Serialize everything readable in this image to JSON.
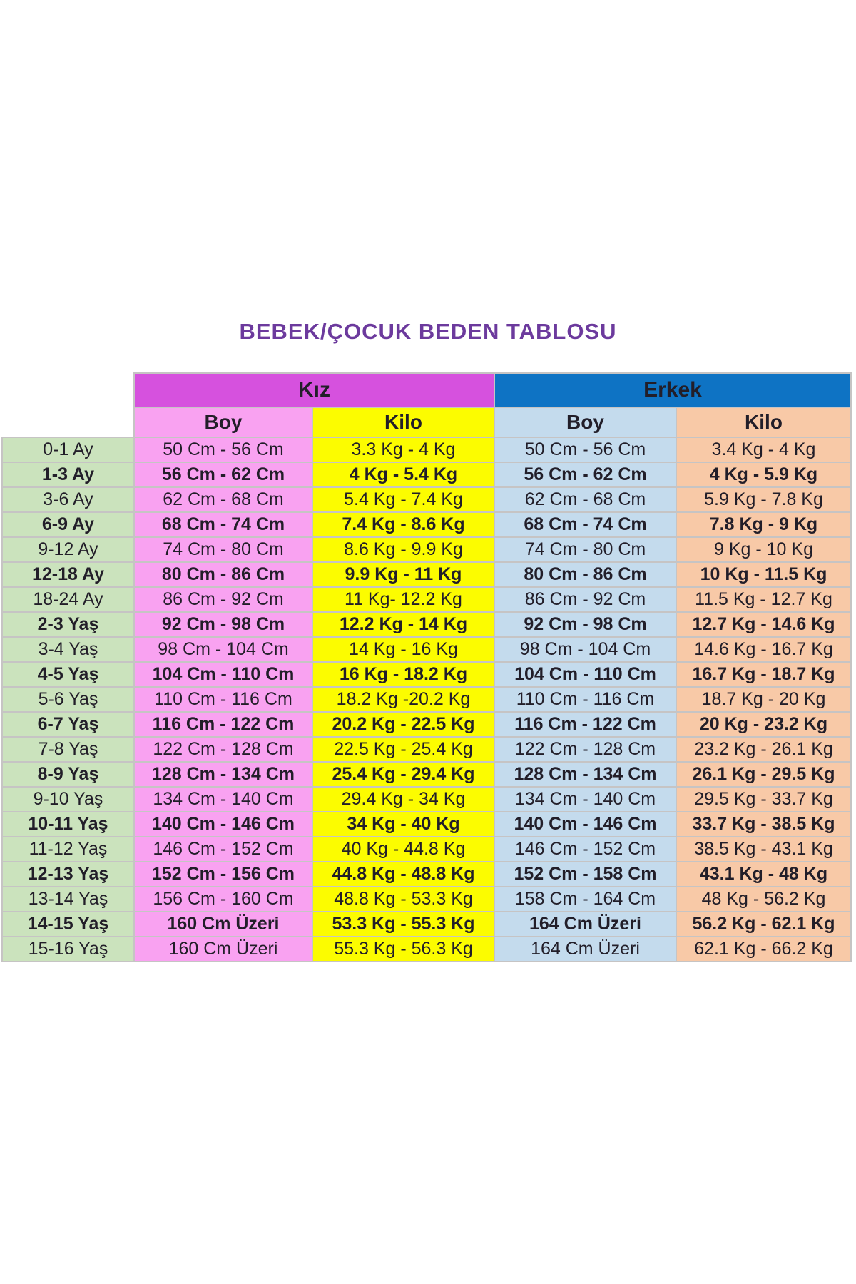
{
  "title": {
    "text": "BEBEK/ÇOCUK BEDEN TABLOSU",
    "color": "#6C3A9D"
  },
  "table": {
    "groups": [
      {
        "label": "Kız"
      },
      {
        "label": "Erkek"
      }
    ],
    "subheader": {
      "boy": "Boy",
      "kilo": "Kilo"
    },
    "colors": {
      "title_color": "#6C3A9D",
      "kiz_header_bg": "#D651DE",
      "erkek_header_bg": "#0E73C4",
      "kiz_boy_bg": "#F9A2F1",
      "kiz_kilo_bg": "#FCFC00",
      "erkek_boy_bg": "#C4DBED",
      "erkek_kilo_bg": "#F8C9A7",
      "age_bg": "#CBE3BD",
      "grid": "#C6C4C4",
      "text": "#221E29"
    },
    "rows": [
      {
        "age": "0-1 Ay",
        "kiz_boy": "50 Cm - 56 Cm",
        "kiz_kilo": "3.3 Kg - 4 Kg",
        "erkek_boy": "50 Cm - 56 Cm",
        "erkek_kilo": "3.4 Kg - 4 Kg",
        "bold": false
      },
      {
        "age": "1-3 Ay",
        "kiz_boy": "56 Cm - 62 Cm",
        "kiz_kilo": "4 Kg - 5.4 Kg",
        "erkek_boy": "56 Cm - 62 Cm",
        "erkek_kilo": "4 Kg - 5.9 Kg",
        "bold": true
      },
      {
        "age": "3-6 Ay",
        "kiz_boy": "62 Cm - 68 Cm",
        "kiz_kilo": "5.4 Kg - 7.4 Kg",
        "erkek_boy": "62 Cm - 68 Cm",
        "erkek_kilo": "5.9 Kg - 7.8 Kg",
        "bold": false
      },
      {
        "age": "6-9 Ay",
        "kiz_boy": "68 Cm - 74 Cm",
        "kiz_kilo": "7.4 Kg - 8.6 Kg",
        "erkek_boy": "68 Cm - 74 Cm",
        "erkek_kilo": "7.8 Kg - 9 Kg",
        "bold": true
      },
      {
        "age": "9-12 Ay",
        "kiz_boy": "74 Cm - 80 Cm",
        "kiz_kilo": "8.6 Kg - 9.9 Kg",
        "erkek_boy": "74 Cm - 80 Cm",
        "erkek_kilo": "9 Kg - 10 Kg",
        "bold": false
      },
      {
        "age": "12-18 Ay",
        "kiz_boy": "80 Cm - 86 Cm",
        "kiz_kilo": "9.9 Kg - 11 Kg",
        "erkek_boy": "80 Cm - 86 Cm",
        "erkek_kilo": "10 Kg - 11.5 Kg",
        "bold": true
      },
      {
        "age": "18-24 Ay",
        "kiz_boy": "86 Cm - 92 Cm",
        "kiz_kilo": "11 Kg- 12.2 Kg",
        "erkek_boy": "86 Cm - 92 Cm",
        "erkek_kilo": "11.5 Kg - 12.7 Kg",
        "bold": false
      },
      {
        "age": "2-3 Yaş",
        "kiz_boy": "92 Cm - 98 Cm",
        "kiz_kilo": "12.2 Kg - 14 Kg",
        "erkek_boy": "92 Cm - 98 Cm",
        "erkek_kilo": "12.7 Kg - 14.6 Kg",
        "bold": true
      },
      {
        "age": "3-4 Yaş",
        "kiz_boy": "98 Cm - 104 Cm",
        "kiz_kilo": "14 Kg - 16 Kg",
        "erkek_boy": "98 Cm - 104 Cm",
        "erkek_kilo": "14.6 Kg - 16.7 Kg",
        "bold": false
      },
      {
        "age": "4-5 Yaş",
        "kiz_boy": "104 Cm - 110 Cm",
        "kiz_kilo": "16 Kg - 18.2 Kg",
        "erkek_boy": "104 Cm - 110 Cm",
        "erkek_kilo": "16.7 Kg - 18.7 Kg",
        "bold": true
      },
      {
        "age": "5-6 Yaş",
        "kiz_boy": "110 Cm - 116 Cm",
        "kiz_kilo": "18.2 Kg -20.2 Kg",
        "erkek_boy": "110 Cm - 116 Cm",
        "erkek_kilo": "18.7 Kg - 20 Kg",
        "bold": false
      },
      {
        "age": "6-7 Yaş",
        "kiz_boy": "116 Cm - 122 Cm",
        "kiz_kilo": "20.2 Kg - 22.5 Kg",
        "erkek_boy": "116 Cm - 122 Cm",
        "erkek_kilo": "20 Kg - 23.2 Kg",
        "bold": true
      },
      {
        "age": "7-8 Yaş",
        "kiz_boy": "122 Cm - 128 Cm",
        "kiz_kilo": "22.5 Kg - 25.4 Kg",
        "erkek_boy": "122 Cm - 128 Cm",
        "erkek_kilo": "23.2 Kg - 26.1 Kg",
        "bold": false
      },
      {
        "age": "8-9 Yaş",
        "kiz_boy": "128 Cm - 134 Cm",
        "kiz_kilo": "25.4 Kg - 29.4 Kg",
        "erkek_boy": "128 Cm - 134 Cm",
        "erkek_kilo": "26.1 Kg - 29.5 Kg",
        "bold": true
      },
      {
        "age": "9-10 Yaş",
        "kiz_boy": "134 Cm - 140 Cm",
        "kiz_kilo": "29.4 Kg - 34 Kg",
        "erkek_boy": "134 Cm - 140 Cm",
        "erkek_kilo": "29.5 Kg - 33.7 Kg",
        "bold": false
      },
      {
        "age": "10-11 Yaş",
        "kiz_boy": "140 Cm - 146 Cm",
        "kiz_kilo": "34 Kg - 40 Kg",
        "erkek_boy": "140 Cm - 146 Cm",
        "erkek_kilo": "33.7 Kg - 38.5 Kg",
        "bold": true
      },
      {
        "age": "11-12 Yaş",
        "kiz_boy": "146 Cm - 152 Cm",
        "kiz_kilo": "40 Kg - 44.8 Kg",
        "erkek_boy": "146 Cm - 152 Cm",
        "erkek_kilo": "38.5 Kg - 43.1 Kg",
        "bold": false
      },
      {
        "age": "12-13 Yaş",
        "kiz_boy": "152 Cm - 156 Cm",
        "kiz_kilo": "44.8 Kg - 48.8 Kg",
        "erkek_boy": "152 Cm - 158 Cm",
        "erkek_kilo": "43.1 Kg - 48 Kg",
        "bold": true
      },
      {
        "age": "13-14 Yaş",
        "kiz_boy": "156 Cm - 160 Cm",
        "kiz_kilo": "48.8 Kg - 53.3 Kg",
        "erkek_boy": "158 Cm - 164 Cm",
        "erkek_kilo": "48 Kg - 56.2 Kg",
        "bold": false
      },
      {
        "age": "14-15 Yaş",
        "kiz_boy": "160 Cm Üzeri",
        "kiz_kilo": "53.3 Kg - 55.3 Kg",
        "erkek_boy": "164 Cm Üzeri",
        "erkek_kilo": "56.2 Kg - 62.1 Kg",
        "bold": true
      },
      {
        "age": "15-16 Yaş",
        "kiz_boy": "160 Cm Üzeri",
        "kiz_kilo": "55.3 Kg - 56.3 Kg",
        "erkek_boy": "164 Cm Üzeri",
        "erkek_kilo": "62.1 Kg - 66.2 Kg",
        "bold": false
      }
    ]
  }
}
